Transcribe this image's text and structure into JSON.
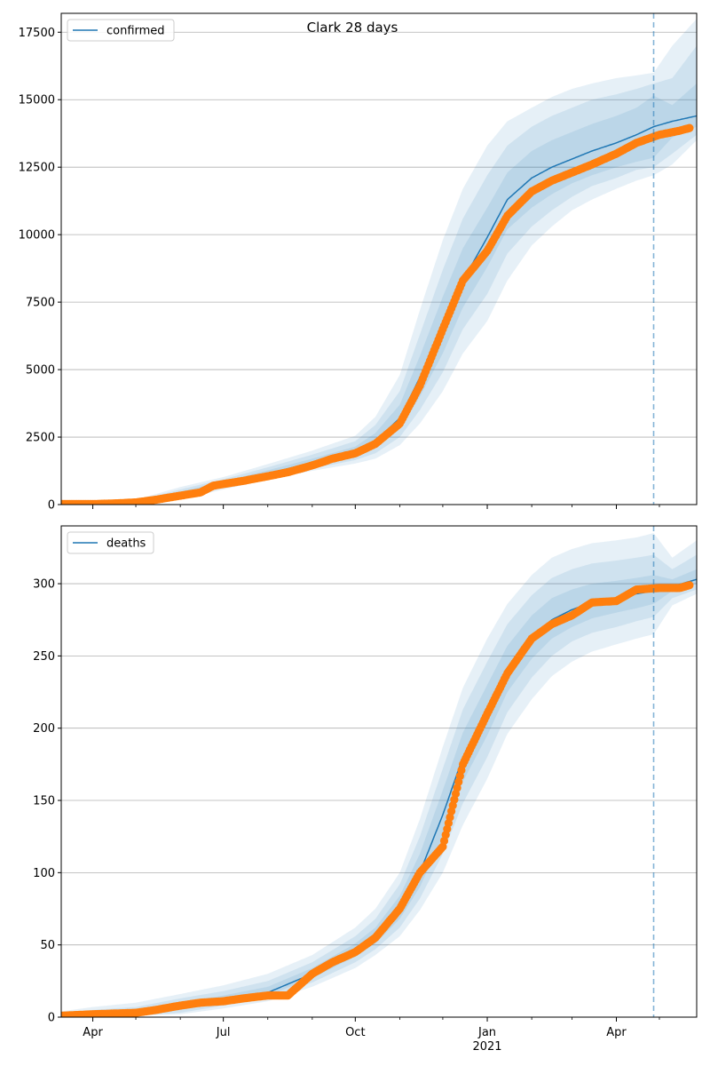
{
  "figure": {
    "title": "Clark 28 days"
  },
  "colors": {
    "model": "#1f77b4",
    "observed": "#ff7f0e",
    "band": "#1f77b4",
    "grid": "#b0b0b0",
    "vline": "#1f77b4"
  },
  "x_axis": {
    "start": "2020-03-10",
    "end": "2021-05-27",
    "major_ticks": [
      {
        "date": "2020-04-01",
        "label": "Apr",
        "sublabel": ""
      },
      {
        "date": "2020-07-01",
        "label": "Jul",
        "sublabel": ""
      },
      {
        "date": "2020-10-01",
        "label": "Oct",
        "sublabel": ""
      },
      {
        "date": "2021-01-01",
        "label": "Jan",
        "sublabel": "2021"
      },
      {
        "date": "2021-04-01",
        "label": "Apr",
        "sublabel": ""
      }
    ],
    "minor_ticks": [
      "2020-05-01",
      "2020-06-01",
      "2020-08-01",
      "2020-09-01",
      "2020-11-01",
      "2020-12-01",
      "2021-02-01",
      "2021-03-01",
      "2021-05-01"
    ]
  },
  "chart_data": [
    {
      "type": "line",
      "series_name": "confirmed",
      "legend": "top-left",
      "grid": "y",
      "ylim": [
        0,
        18200
      ],
      "yticks": [
        0,
        2500,
        5000,
        7500,
        10000,
        12500,
        15000,
        17500
      ],
      "forecast_start": "2021-04-27",
      "model": {
        "x": [
          "2020-03-10",
          "2020-04-01",
          "2020-05-01",
          "2020-06-01",
          "2020-07-01",
          "2020-08-01",
          "2020-09-01",
          "2020-10-01",
          "2020-10-15",
          "2020-11-01",
          "2020-11-15",
          "2020-12-01",
          "2020-12-15",
          "2021-01-01",
          "2021-01-15",
          "2021-02-01",
          "2021-02-15",
          "2021-03-01",
          "2021-03-15",
          "2021-04-01",
          "2021-04-15",
          "2021-04-27",
          "2021-05-10",
          "2021-05-27"
        ],
        "y": [
          20,
          40,
          80,
          380,
          760,
          1150,
          1550,
          1950,
          2350,
          3200,
          4700,
          6600,
          8300,
          9900,
          11300,
          12100,
          12500,
          12800,
          13100,
          13400,
          13700,
          14000,
          14200,
          14400
        ]
      },
      "bands": [
        {
          "lower": [
            12,
            30,
            60,
            300,
            680,
            1050,
            1420,
            1780,
            2100,
            2800,
            4000,
            5600,
            7300,
            8800,
            10200,
            11000,
            11500,
            11900,
            12200,
            12500,
            12700,
            12850,
            13600,
            14000
          ],
          "upper": [
            30,
            55,
            110,
            480,
            860,
            1270,
            1700,
            2150,
            2650,
            3700,
            5500,
            7700,
            9500,
            11000,
            12300,
            13100,
            13500,
            13800,
            14100,
            14400,
            14700,
            15150,
            14800,
            15600
          ]
        },
        {
          "lower": [
            8,
            22,
            45,
            240,
            620,
            980,
            1330,
            1650,
            1900,
            2500,
            3500,
            4900,
            6500,
            7800,
            9300,
            10300,
            10900,
            11400,
            11800,
            12100,
            12400,
            12500,
            13000,
            13700
          ],
          "upper": [
            40,
            70,
            140,
            560,
            940,
            1380,
            1850,
            2350,
            2950,
            4200,
            6300,
            8700,
            10600,
            12200,
            13300,
            14000,
            14400,
            14700,
            15000,
            15200,
            15400,
            15600,
            15800,
            17000
          ]
        },
        {
          "lower": [
            5,
            15,
            30,
            190,
            560,
            920,
            1250,
            1520,
            1700,
            2200,
            3000,
            4200,
            5600,
            6800,
            8300,
            9600,
            10300,
            10900,
            11300,
            11700,
            12000,
            12200,
            12600,
            13500
          ],
          "upper": [
            55,
            90,
            180,
            650,
            1020,
            1500,
            2000,
            2550,
            3250,
            4800,
            7200,
            9800,
            11700,
            13300,
            14200,
            14700,
            15100,
            15400,
            15600,
            15800,
            15900,
            16000,
            17000,
            18000
          ]
        }
      ],
      "observed": {
        "x": [
          "2020-03-10",
          "2020-04-01",
          "2020-04-15",
          "2020-05-01",
          "2020-05-15",
          "2020-06-01",
          "2020-06-15",
          "2020-06-24",
          "2020-07-01",
          "2020-07-15",
          "2020-08-01",
          "2020-08-15",
          "2020-09-01",
          "2020-09-15",
          "2020-10-01",
          "2020-10-15",
          "2020-11-01",
          "2020-11-15",
          "2020-12-01",
          "2020-12-15",
          "2021-01-01",
          "2021-01-15",
          "2021-02-01",
          "2021-02-15",
          "2021-03-01",
          "2021-03-15",
          "2021-04-01",
          "2021-04-15",
          "2021-05-01",
          "2021-05-15",
          "2021-05-22"
        ],
        "y": [
          20,
          20,
          40,
          80,
          180,
          330,
          450,
          700,
          760,
          880,
          1050,
          1200,
          1450,
          1700,
          1900,
          2250,
          3000,
          4400,
          6500,
          8300,
          9400,
          10700,
          11600,
          12000,
          12300,
          12600,
          13000,
          13400,
          13700,
          13850,
          13950
        ]
      }
    },
    {
      "type": "line",
      "series_name": "deaths",
      "legend": "top-left",
      "grid": "y",
      "ylim": [
        0,
        340
      ],
      "yticks": [
        0,
        50,
        100,
        150,
        200,
        250,
        300
      ],
      "forecast_start": "2021-04-27",
      "model": {
        "x": [
          "2020-03-10",
          "2020-04-01",
          "2020-05-01",
          "2020-06-01",
          "2020-07-01",
          "2020-08-01",
          "2020-09-01",
          "2020-10-01",
          "2020-10-15",
          "2020-11-01",
          "2020-11-15",
          "2020-12-01",
          "2020-12-15",
          "2021-01-01",
          "2021-01-15",
          "2021-02-01",
          "2021-02-15",
          "2021-03-01",
          "2021-03-15",
          "2021-04-01",
          "2021-04-15",
          "2021-04-27",
          "2021-05-10",
          "2021-05-27"
        ],
        "y": [
          1,
          2,
          3,
          7,
          12,
          17,
          30,
          46,
          56,
          75,
          100,
          140,
          180,
          212,
          240,
          262,
          275,
          282,
          287,
          290,
          293,
          295,
          298,
          303
        ]
      },
      "bands": [
        {
          "lower": [
            0,
            1,
            2,
            5,
            10,
            15,
            27,
            42,
            51,
            68,
            90,
            125,
            163,
            195,
            225,
            248,
            262,
            270,
            276,
            280,
            283,
            286,
            295,
            300
          ],
          "upper": [
            2,
            4,
            5,
            10,
            15,
            21,
            34,
            51,
            62,
            84,
            113,
            157,
            197,
            230,
            257,
            278,
            290,
            296,
            300,
            302,
            304,
            306,
            303,
            310
          ]
        },
        {
          "lower": [
            0,
            1,
            1,
            3,
            8,
            13,
            24,
            38,
            47,
            62,
            82,
            113,
            148,
            180,
            211,
            235,
            250,
            260,
            266,
            270,
            274,
            277,
            290,
            296
          ],
          "upper": [
            3,
            5,
            7,
            13,
            18,
            25,
            38,
            56,
            68,
            92,
            125,
            172,
            213,
            246,
            272,
            292,
            304,
            310,
            314,
            316,
            318,
            320,
            310,
            320
          ]
        },
        {
          "lower": [
            0,
            0,
            1,
            2,
            6,
            11,
            21,
            34,
            43,
            56,
            74,
            100,
            133,
            165,
            196,
            220,
            236,
            246,
            253,
            258,
            262,
            265,
            285,
            293
          ],
          "upper": [
            4,
            7,
            10,
            16,
            22,
            30,
            43,
            62,
            75,
            100,
            137,
            187,
            228,
            262,
            286,
            306,
            318,
            324,
            328,
            330,
            332,
            335,
            318,
            330
          ]
        }
      ],
      "observed": {
        "x": [
          "2020-03-10",
          "2020-04-01",
          "2020-05-01",
          "2020-05-15",
          "2020-06-01",
          "2020-06-15",
          "2020-07-01",
          "2020-07-15",
          "2020-08-01",
          "2020-08-15",
          "2020-09-01",
          "2020-09-15",
          "2020-10-01",
          "2020-10-15",
          "2020-11-01",
          "2020-11-15",
          "2020-12-01",
          "2020-12-15",
          "2021-01-01",
          "2021-01-15",
          "2021-02-01",
          "2021-02-15",
          "2021-03-01",
          "2021-03-15",
          "2021-04-01",
          "2021-04-15",
          "2021-05-01",
          "2021-05-15",
          "2021-05-22"
        ],
        "y": [
          1,
          2,
          3,
          5,
          8,
          10,
          11,
          13,
          15,
          15,
          30,
          38,
          45,
          55,
          75,
          100,
          118,
          175,
          210,
          238,
          262,
          272,
          278,
          287,
          288,
          296,
          297,
          297,
          299
        ]
      }
    }
  ]
}
